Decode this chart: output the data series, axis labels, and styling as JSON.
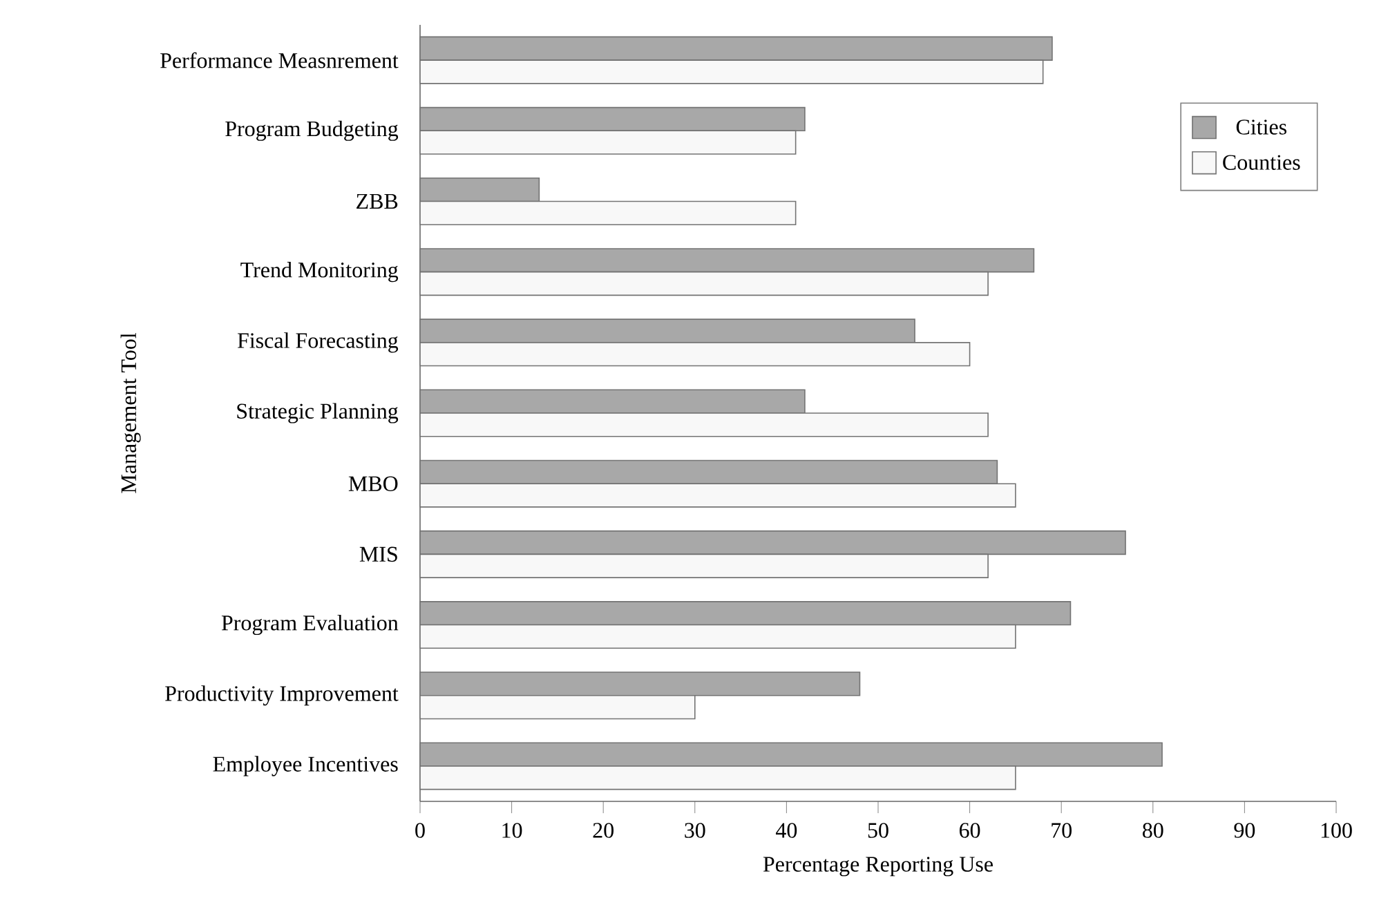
{
  "chart_data": {
    "type": "bar",
    "orientation": "horizontal",
    "xlabel": "Percentage Reporting Use",
    "ylabel": "Management Tool",
    "categories": [
      "Performance Measnrement",
      "Program Budgeting",
      "ZBB",
      "Trend Monitoring",
      "Fiscal Forecasting",
      "Strategic Planning",
      "MBO",
      "MIS",
      "Program Evaluation",
      "Productivity Improvement",
      "Employee Incentives"
    ],
    "series": [
      {
        "name": "Cities",
        "color": "#a8a8a8",
        "values": [
          69,
          42,
          13,
          67,
          54,
          42,
          63,
          77,
          71,
          48,
          81
        ]
      },
      {
        "name": "Counties",
        "color": "#f8f8f8",
        "values": [
          68,
          41,
          41,
          62,
          60,
          62,
          65,
          62,
          65,
          30,
          65
        ]
      }
    ],
    "xlim": [
      0,
      100
    ],
    "xticks": [
      0,
      10,
      20,
      30,
      40,
      50,
      60,
      70,
      80,
      90,
      100
    ],
    "grid": false,
    "legend": "top right"
  }
}
